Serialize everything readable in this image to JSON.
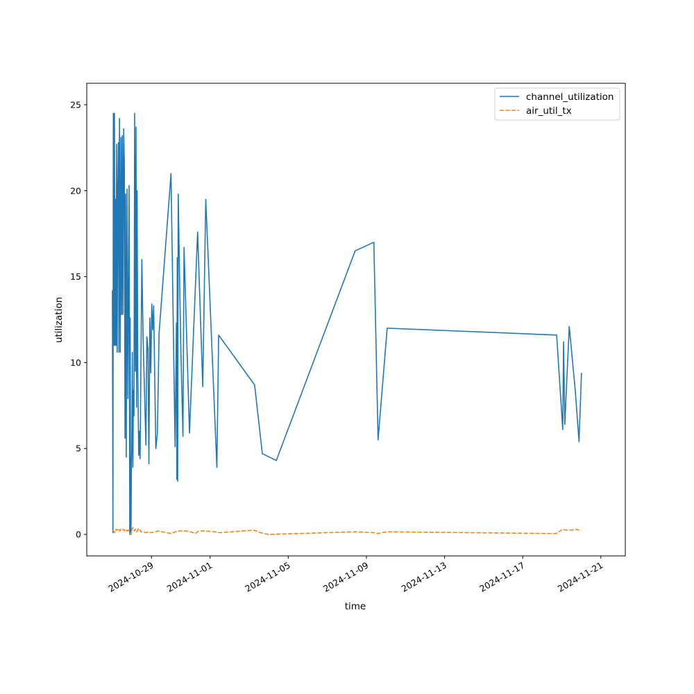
{
  "chart_data": {
    "type": "line",
    "title": "",
    "xlabel": "time",
    "ylabel": "utilization",
    "xlim": [
      "2024-10-25T16:30",
      "2024-11-22T06:00"
    ],
    "ylim": [
      -1.25,
      26.25
    ],
    "yticks": [
      0,
      5,
      10,
      15,
      20,
      25
    ],
    "xticks": [
      "2024-10-29",
      "2024-11-01",
      "2024-11-05",
      "2024-11-09",
      "2024-11-13",
      "2024-11-17",
      "2024-11-21"
    ],
    "grid": false,
    "legend_position": "top-right",
    "series": [
      {
        "name": "channel_utilization",
        "color": "#1f77b4",
        "style": "solid",
        "points": [
          [
            "2024-10-27T00:00",
            14.2
          ],
          [
            "2024-10-27T00:40",
            0.1
          ],
          [
            "2024-10-27T01:10",
            24.5
          ],
          [
            "2024-10-27T01:50",
            11.0
          ],
          [
            "2024-10-27T02:30",
            24.5
          ],
          [
            "2024-10-27T03:10",
            11.0
          ],
          [
            "2024-10-27T03:50",
            19.5
          ],
          [
            "2024-10-27T04:30",
            11.0
          ],
          [
            "2024-10-27T05:10",
            22.7
          ],
          [
            "2024-10-27T05:50",
            10.6
          ],
          [
            "2024-10-27T06:40",
            20.2
          ],
          [
            "2024-10-27T07:20",
            22.8
          ],
          [
            "2024-10-27T08:00",
            10.6
          ],
          [
            "2024-10-27T08:40",
            24.2
          ],
          [
            "2024-10-27T09:40",
            10.6
          ],
          [
            "2024-10-27T10:30",
            23.1
          ],
          [
            "2024-10-27T11:20",
            12.8
          ],
          [
            "2024-10-27T12:10",
            23.2
          ],
          [
            "2024-10-27T13:00",
            12.8
          ],
          [
            "2024-10-27T13:50",
            23.6
          ],
          [
            "2024-10-27T14:40",
            21.6
          ],
          [
            "2024-10-27T15:30",
            5.6
          ],
          [
            "2024-10-27T16:10",
            19.8
          ],
          [
            "2024-10-27T17:00",
            4.5
          ],
          [
            "2024-10-27T18:00",
            20.1
          ],
          [
            "2024-10-27T19:00",
            7.9
          ],
          [
            "2024-10-27T20:30",
            20.3
          ],
          [
            "2024-10-27T21:20",
            0.0
          ],
          [
            "2024-10-27T21:50",
            12.6
          ],
          [
            "2024-10-27T22:20",
            0.0
          ],
          [
            "2024-10-27T22:50",
            0.0
          ],
          [
            "2024-10-27T23:20",
            3.8
          ],
          [
            "2024-10-27T23:50",
            5.2
          ],
          [
            "2024-10-28T00:30",
            10.6
          ],
          [
            "2024-10-28T01:10",
            3.9
          ],
          [
            "2024-10-28T01:50",
            8.4
          ],
          [
            "2024-10-28T02:30",
            6.9
          ],
          [
            "2024-10-28T03:20",
            24.5
          ],
          [
            "2024-10-28T04:10",
            9.5
          ],
          [
            "2024-10-28T05:00",
            23.7
          ],
          [
            "2024-10-28T05:40",
            7.4
          ],
          [
            "2024-10-28T06:20",
            20.0
          ],
          [
            "2024-10-28T07:10",
            9.5
          ],
          [
            "2024-10-28T08:20",
            4.6
          ],
          [
            "2024-10-28T09:10",
            6.0
          ],
          [
            "2024-10-28T10:00",
            4.4
          ],
          [
            "2024-10-28T12:10",
            16.0
          ],
          [
            "2024-10-28T13:40",
            11.5
          ],
          [
            "2024-10-28T17:10",
            5.2
          ],
          [
            "2024-10-28T18:20",
            11.5
          ],
          [
            "2024-10-28T19:40",
            10.8
          ],
          [
            "2024-10-28T20:50",
            4.1
          ],
          [
            "2024-10-28T22:00",
            12.6
          ],
          [
            "2024-10-28T23:10",
            9.4
          ],
          [
            "2024-10-29T00:20",
            13.4
          ],
          [
            "2024-10-29T01:30",
            11.9
          ],
          [
            "2024-10-29T02:40",
            13.3
          ],
          [
            "2024-10-29T05:20",
            5.0
          ],
          [
            "2024-10-29T07:20",
            5.9
          ],
          [
            "2024-10-29T09:20",
            11.7
          ],
          [
            "2024-10-30T00:00",
            21.0
          ],
          [
            "2024-10-30T05:00",
            5.1
          ],
          [
            "2024-10-30T06:40",
            12.3
          ],
          [
            "2024-10-30T07:10",
            3.2
          ],
          [
            "2024-10-30T07:40",
            16.1
          ],
          [
            "2024-10-30T08:10",
            3.1
          ],
          [
            "2024-10-30T08:50",
            19.8
          ],
          [
            "2024-10-30T11:50",
            11.3
          ],
          [
            "2024-10-30T14:40",
            5.7
          ],
          [
            "2024-10-30T16:00",
            16.7
          ],
          [
            "2024-10-30T22:40",
            5.9
          ],
          [
            "2024-10-31T08:40",
            17.6
          ],
          [
            "2024-10-31T15:00",
            8.6
          ],
          [
            "2024-10-31T18:40",
            19.5
          ],
          [
            "2024-11-01T08:20",
            3.9
          ],
          [
            "2024-11-01T10:30",
            11.6
          ],
          [
            "2024-11-03T06:40",
            8.7
          ],
          [
            "2024-11-03T16:10",
            4.7
          ],
          [
            "2024-11-04T09:20",
            4.3
          ],
          [
            "2024-11-08T10:10",
            16.5
          ],
          [
            "2024-11-09T09:10",
            17.0
          ],
          [
            "2024-11-09T14:20",
            5.5
          ],
          [
            "2024-11-10T01:30",
            12.0
          ],
          [
            "2024-11-18T17:40",
            11.6
          ],
          [
            "2024-11-19T01:10",
            6.1
          ],
          [
            "2024-11-19T02:10",
            11.2
          ],
          [
            "2024-11-19T03:40",
            6.4
          ],
          [
            "2024-11-19T09:10",
            12.1
          ],
          [
            "2024-11-19T16:40",
            8.3
          ],
          [
            "2024-11-19T21:10",
            5.4
          ],
          [
            "2024-11-20T00:10",
            9.4
          ]
        ]
      },
      {
        "name": "air_util_tx",
        "color": "#ff7f0e",
        "style": "dashed",
        "points": [
          [
            "2024-10-27T00:00",
            0.25
          ],
          [
            "2024-10-27T01:30",
            0.2
          ],
          [
            "2024-10-27T03:00",
            0.1
          ],
          [
            "2024-10-27T04:30",
            0.3
          ],
          [
            "2024-10-27T06:00",
            0.25
          ],
          [
            "2024-10-27T07:30",
            0.35
          ],
          [
            "2024-10-27T09:00",
            0.2
          ],
          [
            "2024-10-27T10:30",
            0.3
          ],
          [
            "2024-10-27T12:00",
            0.25
          ],
          [
            "2024-10-27T13:30",
            0.3
          ],
          [
            "2024-10-27T15:00",
            0.2
          ],
          [
            "2024-10-27T16:30",
            0.3
          ],
          [
            "2024-10-27T18:00",
            0.2
          ],
          [
            "2024-10-27T19:30",
            0.25
          ],
          [
            "2024-10-27T21:00",
            0.1
          ],
          [
            "2024-10-27T22:30",
            0.0
          ],
          [
            "2024-10-28T00:00",
            0.3
          ],
          [
            "2024-10-28T01:30",
            0.4
          ],
          [
            "2024-10-28T03:00",
            0.2
          ],
          [
            "2024-10-28T04:30",
            0.3
          ],
          [
            "2024-10-28T06:00",
            0.15
          ],
          [
            "2024-10-28T07:30",
            0.3
          ],
          [
            "2024-10-28T09:00",
            0.35
          ],
          [
            "2024-10-28T11:00",
            0.15
          ],
          [
            "2024-10-28T14:00",
            0.15
          ],
          [
            "2024-10-28T17:00",
            0.1
          ],
          [
            "2024-10-28T20:00",
            0.15
          ],
          [
            "2024-10-28T23:00",
            0.1
          ],
          [
            "2024-10-29T02:00",
            0.12
          ],
          [
            "2024-10-29T05:00",
            0.15
          ],
          [
            "2024-10-29T08:00",
            0.2
          ],
          [
            "2024-10-30T00:00",
            0.05
          ],
          [
            "2024-10-30T05:00",
            0.15
          ],
          [
            "2024-10-30T08:00",
            0.2
          ],
          [
            "2024-10-30T12:00",
            0.2
          ],
          [
            "2024-10-30T18:00",
            0.2
          ],
          [
            "2024-10-31T00:00",
            0.15
          ],
          [
            "2024-10-31T06:00",
            0.05
          ],
          [
            "2024-10-31T10:00",
            0.2
          ],
          [
            "2024-10-31T18:00",
            0.2
          ],
          [
            "2024-11-01T06:00",
            0.15
          ],
          [
            "2024-11-01T12:00",
            0.1
          ],
          [
            "2024-11-03T06:00",
            0.25
          ],
          [
            "2024-11-03T14:00",
            0.1
          ],
          [
            "2024-11-04T00:00",
            0.0
          ],
          [
            "2024-11-08T10:00",
            0.15
          ],
          [
            "2024-11-09T09:00",
            0.1
          ],
          [
            "2024-11-09T14:00",
            0.05
          ],
          [
            "2024-11-10T01:00",
            0.15
          ],
          [
            "2024-11-18T17:00",
            0.05
          ],
          [
            "2024-11-19T01:00",
            0.3
          ],
          [
            "2024-11-19T06:00",
            0.25
          ],
          [
            "2024-11-19T12:00",
            0.25
          ],
          [
            "2024-11-19T18:00",
            0.3
          ],
          [
            "2024-11-20T00:00",
            0.2
          ]
        ]
      }
    ]
  }
}
